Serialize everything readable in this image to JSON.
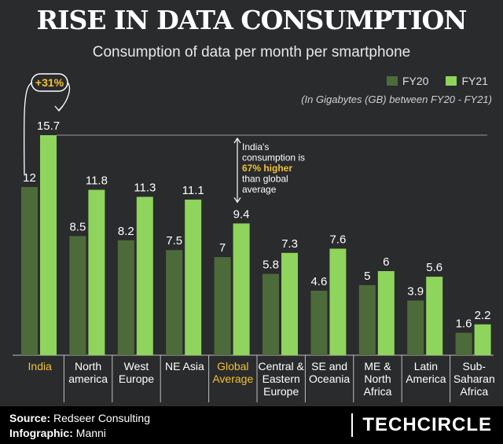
{
  "header": {
    "title": "RISE IN DATA CONSUMPTION",
    "subtitle": "Consumption of data per month per smartphone"
  },
  "legend": {
    "fy20": "FY20",
    "fy21": "FY21",
    "unit_note": "(In Gigabytes (GB) between FY20 - FY21)"
  },
  "colors": {
    "fy20": "#4d6b3a",
    "fy21": "#8fd45c",
    "highlight": "#f2c230",
    "background": "#2a2b2d"
  },
  "annotations": {
    "india_growth": "+31%",
    "india_note_lines": [
      "India's",
      "consumption is",
      "67% higher",
      "than global",
      "average"
    ]
  },
  "chart_data": {
    "type": "bar",
    "categories": [
      [
        "India"
      ],
      [
        "North",
        "america"
      ],
      [
        "West",
        "Europe"
      ],
      [
        "NE Asia"
      ],
      [
        "Global",
        "Average"
      ],
      [
        "Central &",
        "Eastern",
        "Europe"
      ],
      [
        "SE and",
        "Oceania"
      ],
      [
        "ME &",
        "North",
        "Africa"
      ],
      [
        "Latin",
        "America"
      ],
      [
        "Sub-",
        "Saharan",
        "Africa"
      ]
    ],
    "highlighted_categories": [
      0,
      4
    ],
    "series": [
      {
        "name": "FY20",
        "values": [
          12,
          8.5,
          8.2,
          7.5,
          7,
          5.8,
          4.6,
          5,
          3.9,
          1.6
        ]
      },
      {
        "name": "FY21",
        "values": [
          15.7,
          11.8,
          11.3,
          11.1,
          9.4,
          7.3,
          7.6,
          6,
          5.6,
          2.2
        ]
      }
    ],
    "value_labels": {
      "FY20": [
        "12",
        "8.5",
        "8.2",
        "7.5",
        "7",
        "5.8",
        "4.6",
        "5",
        "3.9",
        "1.6"
      ],
      "FY21": [
        "15.7",
        "11.8",
        "11.3",
        "11.1",
        "9.4",
        "7.3",
        "7.6",
        "6",
        "5.6",
        "2.2"
      ]
    },
    "ylim": [
      0,
      15.7
    ]
  },
  "footer": {
    "source_label": "Source:",
    "source_value": "Redseer Consulting",
    "infographic_label": "Infographic:",
    "infographic_value": "Manni",
    "brand": "TECHCIRCLE"
  }
}
